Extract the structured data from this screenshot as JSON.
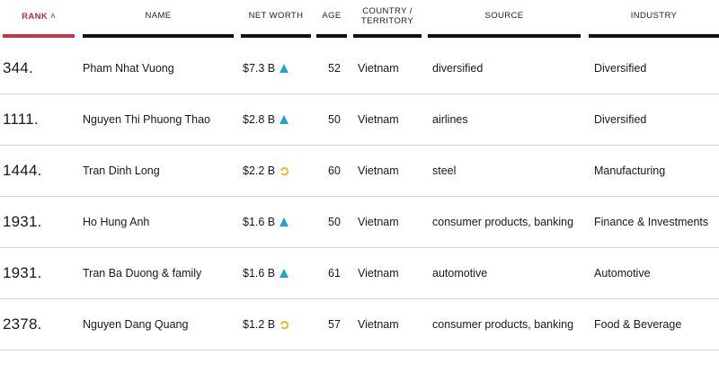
{
  "columns": {
    "rank": "RANK",
    "name": "NAME",
    "net_worth": "NET WORTH",
    "age": "AGE",
    "country": "COUNTRY / TERRITORY",
    "source": "SOURCE",
    "industry": "INDUSTRY"
  },
  "colors": {
    "accent": "#c4364a",
    "trend_up": "#1ea3d8",
    "trend_flat": "#e8b51f"
  },
  "rows": [
    {
      "rank": "344.",
      "name": "Pham Nhat Vuong",
      "net_worth": "$7.3 B",
      "trend": "up-triangle-icon",
      "age": "52",
      "country": "Vietnam",
      "source": "diversified",
      "industry": "Diversified"
    },
    {
      "rank": "1111.",
      "name": "Nguyen Thi Phuong Thao",
      "net_worth": "$2.8 B",
      "trend": "up-triangle-icon",
      "age": "50",
      "country": "Vietnam",
      "source": "airlines",
      "industry": "Diversified"
    },
    {
      "rank": "1444.",
      "name": "Tran Dinh Long",
      "net_worth": "$2.2 B",
      "trend": "unchanged-icon",
      "age": "60",
      "country": "Vietnam",
      "source": "steel",
      "industry": "Manufacturing"
    },
    {
      "rank": "1931.",
      "name": "Ho Hung Anh",
      "net_worth": "$1.6 B",
      "trend": "up-triangle-icon",
      "age": "50",
      "country": "Vietnam",
      "source": "consumer products, banking",
      "industry": "Finance & Investments"
    },
    {
      "rank": "1931.",
      "name": "Tran Ba Duong & family",
      "net_worth": "$1.6 B",
      "trend": "up-triangle-icon",
      "age": "61",
      "country": "Vietnam",
      "source": "automotive",
      "industry": "Automotive"
    },
    {
      "rank": "2378.",
      "name": "Nguyen Dang Quang",
      "net_worth": "$1.2 B",
      "trend": "unchanged-icon",
      "age": "57",
      "country": "Vietnam",
      "source": "consumer products, banking",
      "industry": "Food & Beverage"
    }
  ]
}
